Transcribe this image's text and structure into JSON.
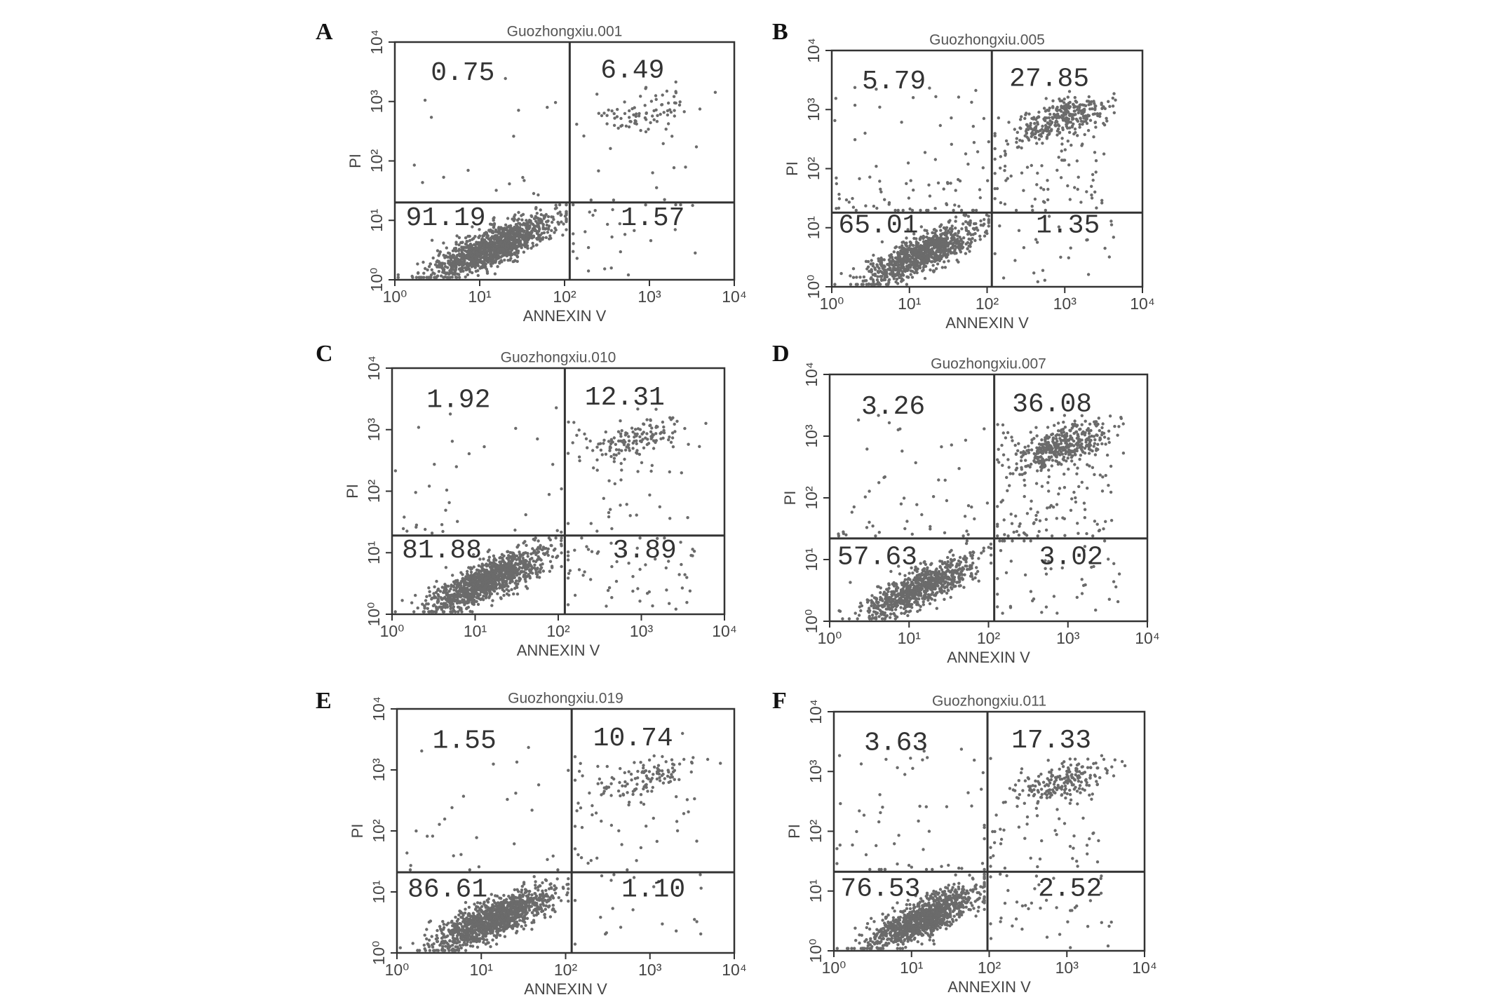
{
  "chart_data": [
    {
      "type": "quadrant",
      "panel": "A",
      "title": "Guozhongxiu.001",
      "x_label": "ANNEXIN V",
      "y_label": "PI",
      "log_scale": true,
      "xlim": [
        1,
        10000
      ],
      "ylim": [
        1,
        10000
      ],
      "xticks": [
        {
          "value": 1,
          "label": "10⁰"
        },
        {
          "value": 10,
          "label": "10¹"
        },
        {
          "value": 100,
          "label": "10²"
        },
        {
          "value": 1000,
          "label": "10³"
        },
        {
          "value": 10000,
          "label": "10⁴"
        }
      ],
      "yticks": [
        {
          "value": 1,
          "label": "10⁰"
        },
        {
          "value": 10,
          "label": "10¹"
        },
        {
          "value": 100,
          "label": "10²"
        },
        {
          "value": 1000,
          "label": "10³"
        },
        {
          "value": 10000,
          "label": "10⁴"
        }
      ],
      "gate": {
        "x": 115,
        "y": 20
      },
      "values": [
        0.75,
        6.49,
        91.19,
        1.57
      ]
    },
    {
      "type": "quadrant",
      "panel": "B",
      "title": "Guozhongxiu.005",
      "x_label": "ANNEXIN V",
      "y_label": "PI",
      "log_scale": true,
      "xlim": [
        1,
        10000
      ],
      "ylim": [
        1,
        10000
      ],
      "xticks": [
        {
          "value": 1,
          "label": "10⁰"
        },
        {
          "value": 10,
          "label": "10¹"
        },
        {
          "value": 100,
          "label": "10²"
        },
        {
          "value": 1000,
          "label": "10³"
        },
        {
          "value": 10000,
          "label": "10⁴"
        }
      ],
      "yticks": [
        {
          "value": 1,
          "label": "10⁰"
        },
        {
          "value": 10,
          "label": "10¹"
        },
        {
          "value": 100,
          "label": "10²"
        },
        {
          "value": 1000,
          "label": "10³"
        },
        {
          "value": 10000,
          "label": "10⁴"
        }
      ],
      "gate": {
        "x": 115,
        "y": 18
      },
      "values": [
        5.79,
        27.85,
        65.01,
        1.35
      ]
    },
    {
      "type": "quadrant",
      "panel": "C",
      "title": "Guozhongxiu.010",
      "x_label": "ANNEXIN V",
      "y_label": "PI",
      "log_scale": true,
      "xlim": [
        1,
        10000
      ],
      "ylim": [
        1,
        10000
      ],
      "xticks": [
        {
          "value": 1,
          "label": "10⁰"
        },
        {
          "value": 10,
          "label": "10¹"
        },
        {
          "value": 100,
          "label": "10²"
        },
        {
          "value": 1000,
          "label": "10³"
        },
        {
          "value": 10000,
          "label": "10⁴"
        }
      ],
      "yticks": [
        {
          "value": 1,
          "label": "10⁰"
        },
        {
          "value": 10,
          "label": "10¹"
        },
        {
          "value": 100,
          "label": "10²"
        },
        {
          "value": 1000,
          "label": "10³"
        },
        {
          "value": 10000,
          "label": "10⁴"
        }
      ],
      "gate": {
        "x": 120,
        "y": 19
      },
      "values": [
        1.92,
        12.31,
        81.88,
        3.89
      ]
    },
    {
      "type": "quadrant",
      "panel": "D",
      "title": "Guozhongxiu.007",
      "x_label": "ANNEXIN V",
      "y_label": "PI",
      "log_scale": true,
      "xlim": [
        1,
        10000
      ],
      "ylim": [
        1,
        10000
      ],
      "xticks": [
        {
          "value": 1,
          "label": "10⁰"
        },
        {
          "value": 10,
          "label": "10¹"
        },
        {
          "value": 100,
          "label": "10²"
        },
        {
          "value": 1000,
          "label": "10³"
        },
        {
          "value": 10000,
          "label": "10⁴"
        }
      ],
      "yticks": [
        {
          "value": 1,
          "label": "10⁰"
        },
        {
          "value": 10,
          "label": "10¹"
        },
        {
          "value": 100,
          "label": "10²"
        },
        {
          "value": 1000,
          "label": "10³"
        },
        {
          "value": 10000,
          "label": "10⁴"
        }
      ],
      "gate": {
        "x": 118,
        "y": 22
      },
      "values": [
        3.26,
        36.08,
        57.63,
        3.02
      ]
    },
    {
      "type": "quadrant",
      "panel": "E",
      "title": "Guozhongxiu.019",
      "x_label": "ANNEXIN V",
      "y_label": "PI",
      "log_scale": true,
      "xlim": [
        1,
        10000
      ],
      "ylim": [
        1,
        10000
      ],
      "xticks": [
        {
          "value": 1,
          "label": "10⁰"
        },
        {
          "value": 10,
          "label": "10¹"
        },
        {
          "value": 100,
          "label": "10²"
        },
        {
          "value": 1000,
          "label": "10³"
        },
        {
          "value": 10000,
          "label": "10⁴"
        }
      ],
      "yticks": [
        {
          "value": 1,
          "label": "10⁰"
        },
        {
          "value": 10,
          "label": "10¹"
        },
        {
          "value": 100,
          "label": "10²"
        },
        {
          "value": 1000,
          "label": "10³"
        },
        {
          "value": 10000,
          "label": "10⁴"
        }
      ],
      "gate": {
        "x": 118,
        "y": 21
      },
      "values": [
        1.55,
        10.74,
        86.61,
        1.1
      ],
      "value_labels": [
        "1.55",
        "10.74",
        "86.61",
        "1.10"
      ]
    },
    {
      "type": "quadrant",
      "panel": "F",
      "title": "Guozhongxiu.011",
      "x_label": "ANNEXIN V",
      "y_label": "PI",
      "log_scale": true,
      "xlim": [
        1,
        10000
      ],
      "ylim": [
        1,
        10000
      ],
      "xticks": [
        {
          "value": 1,
          "label": "10⁰"
        },
        {
          "value": 10,
          "label": "10¹"
        },
        {
          "value": 100,
          "label": "10²"
        },
        {
          "value": 1000,
          "label": "10³"
        },
        {
          "value": 10000,
          "label": "10⁴"
        }
      ],
      "yticks": [
        {
          "value": 1,
          "label": "10⁰"
        },
        {
          "value": 10,
          "label": "10¹"
        },
        {
          "value": 100,
          "label": "10²"
        },
        {
          "value": 1000,
          "label": "10³"
        },
        {
          "value": 10000,
          "label": "10⁴"
        }
      ],
      "gate": {
        "x": 95,
        "y": 21
      },
      "values": [
        3.63,
        17.33,
        76.53,
        2.52
      ]
    }
  ]
}
